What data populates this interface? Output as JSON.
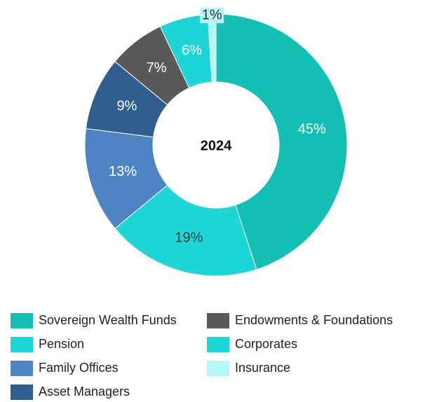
{
  "chart_data": {
    "type": "donut",
    "center_label": "2024",
    "categories": [
      "Sovereign Wealth Funds",
      "Pension",
      "Family Offices",
      "Asset Managers",
      "Endowments & Foundations",
      "Corporates",
      "Insurance"
    ],
    "values": [
      45,
      19,
      13,
      9,
      7,
      6,
      1
    ],
    "value_labels": [
      "45%",
      "19%",
      "13%",
      "9%",
      "7%",
      "6%",
      "1%"
    ],
    "colors": [
      "#14bfb3",
      "#1fd6d6",
      "#4f84c4",
      "#305f8f",
      "#595959",
      "#1fd6d6",
      "#b5f7f7"
    ]
  }
}
